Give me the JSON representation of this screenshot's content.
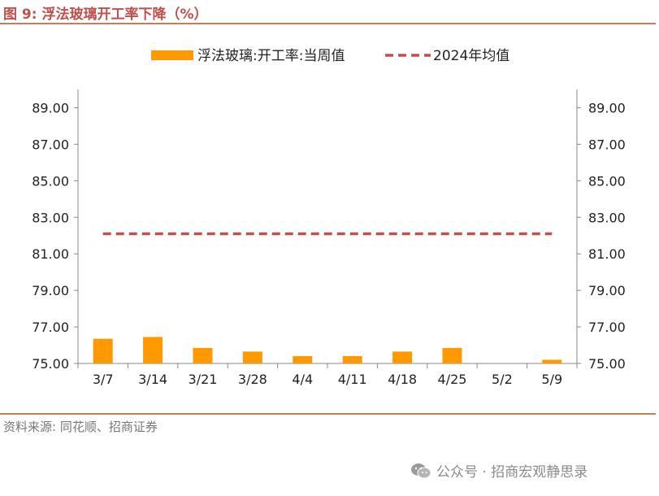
{
  "title": "图 9:  浮法玻璃开工率下降（%）",
  "source": "资料来源:  同花顺、招商证券",
  "watermark": "公众号 · 招商宏观静思录",
  "colors": {
    "bar": "#ff9900",
    "avg_line": "#c0504d",
    "title": "#c0504d",
    "axis": "#888888"
  },
  "chart_data": {
    "type": "bar",
    "categories": [
      "3/7",
      "3/14",
      "3/21",
      "3/28",
      "4/4",
      "4/11",
      "4/18",
      "4/25",
      "5/2",
      "5/9"
    ],
    "series": [
      {
        "name": "浮法玻璃:开工率:当周值",
        "kind": "bar",
        "values": [
          76.35,
          76.45,
          75.85,
          75.65,
          75.4,
          75.4,
          75.65,
          75.85,
          null,
          75.2
        ]
      },
      {
        "name": "2024年均值",
        "kind": "dashed-line",
        "values": [
          82.1,
          82.1,
          82.1,
          82.1,
          82.1,
          82.1,
          82.1,
          82.1,
          82.1,
          82.1
        ]
      }
    ],
    "ylim": [
      75,
      90
    ],
    "yticks": [
      "75.00",
      "77.00",
      "79.00",
      "81.00",
      "83.00",
      "85.00",
      "87.00",
      "89.00"
    ],
    "y2ticks": [
      "75.00",
      "77.00",
      "79.00",
      "81.00",
      "83.00",
      "85.00",
      "87.00",
      "89.00"
    ],
    "legend_position": "top-center",
    "grid": false
  }
}
